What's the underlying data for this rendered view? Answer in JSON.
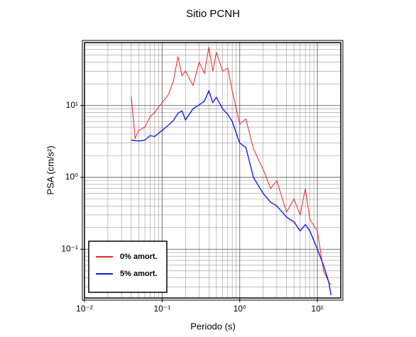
{
  "chart_data": {
    "type": "line",
    "title": "Sitio PCNH",
    "x_label": "Periodo (s)",
    "y_label": "PSA (cm/s²)",
    "xscale": "log",
    "yscale": "log",
    "grid": true,
    "legend": "lower left",
    "xlim": [
      0.01,
      20
    ],
    "ylim": [
      0.021,
      75
    ],
    "xticks": [
      {
        "value": 0.01,
        "label": "10⁻²"
      },
      {
        "value": 0.1,
        "label": "10⁻¹"
      },
      {
        "value": 1,
        "label": "10⁰"
      },
      {
        "value": 10,
        "label": "10¹"
      }
    ],
    "yticks": [
      {
        "value": 0.1,
        "label": "10⁻¹"
      },
      {
        "value": 1,
        "label": "10⁰"
      },
      {
        "value": 10,
        "label": "10¹"
      }
    ],
    "xminorticks": [
      0.02,
      0.03,
      0.04,
      0.05,
      0.06,
      0.07,
      0.08,
      0.09,
      0.2,
      0.3,
      0.4,
      0.5,
      0.6,
      0.7,
      0.8,
      0.9,
      2,
      3,
      4,
      5,
      6,
      7,
      8,
      9
    ],
    "yminorticks": [
      0.03,
      0.04,
      0.05,
      0.06,
      0.07,
      0.08,
      0.09,
      0.2,
      0.3,
      0.4,
      0.5,
      0.6,
      0.7,
      0.8,
      0.9,
      2,
      3,
      4,
      5,
      6,
      7,
      8,
      9,
      20,
      30,
      40,
      50,
      60,
      70
    ],
    "series": [
      {
        "name": "0% amort.",
        "color": "#e8252a",
        "x": [
          0.04,
          0.045,
          0.05,
          0.06,
          0.07,
          0.08,
          0.1,
          0.12,
          0.14,
          0.16,
          0.18,
          0.2,
          0.25,
          0.3,
          0.35,
          0.4,
          0.45,
          0.5,
          0.6,
          0.7,
          0.8,
          1.0,
          1.2,
          1.5,
          2.0,
          2.5,
          3.0,
          4.0,
          5.0,
          6.0,
          7.0,
          8.0,
          10,
          12,
          14,
          15
        ],
        "values": [
          13.5,
          3.5,
          4.5,
          5.0,
          7.0,
          8.0,
          11,
          14,
          22,
          48,
          26,
          30,
          19,
          40,
          28,
          65,
          30,
          55,
          30,
          33,
          16,
          5.5,
          6.5,
          2.5,
          1.3,
          0.7,
          0.9,
          0.33,
          0.5,
          0.3,
          0.7,
          0.26,
          0.18,
          0.05,
          0.035,
          0.032
        ]
      },
      {
        "name": "5% amort.",
        "color": "#1a1aeb",
        "x": [
          0.04,
          0.05,
          0.06,
          0.07,
          0.08,
          0.1,
          0.12,
          0.14,
          0.16,
          0.18,
          0.2,
          0.25,
          0.3,
          0.35,
          0.4,
          0.45,
          0.5,
          0.6,
          0.7,
          0.8,
          1.0,
          1.2,
          1.5,
          2.0,
          2.5,
          3.0,
          4.0,
          5.0,
          6.0,
          7.0,
          8.0,
          10,
          12,
          14,
          15
        ],
        "values": [
          3.3,
          3.2,
          3.3,
          3.8,
          3.7,
          4.5,
          5.3,
          6.2,
          7.8,
          8.4,
          6.3,
          9.0,
          10.2,
          11.5,
          16,
          11,
          13,
          9.0,
          7.5,
          6.0,
          3.0,
          2.6,
          1.0,
          0.6,
          0.45,
          0.4,
          0.28,
          0.24,
          0.18,
          0.22,
          0.18,
          0.1,
          0.06,
          0.035,
          0.023
        ]
      }
    ]
  }
}
